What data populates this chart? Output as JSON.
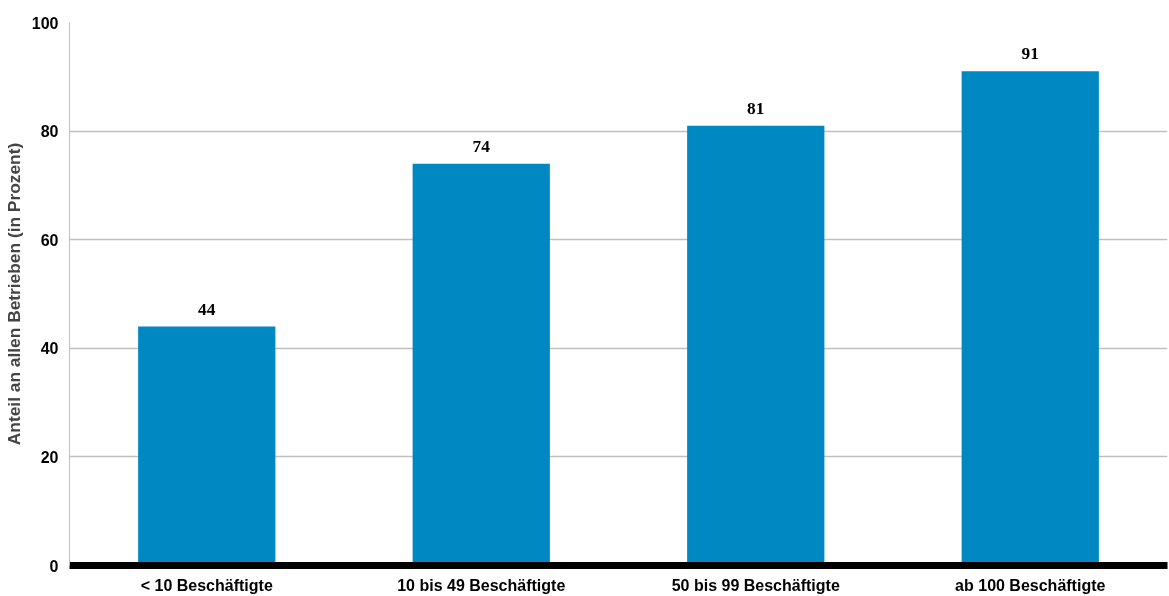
{
  "chart_data": {
    "type": "bar",
    "ylabel": "Anteil an allen Betrieben (in Prozent)",
    "categories": [
      "< 10 Beschäftigte",
      "10 bis 49 Beschäftigte",
      "50 bis 99 Beschäftigte",
      "ab 100 Beschäftigte"
    ],
    "values": [
      44,
      74,
      81,
      91
    ],
    "color": "#0088c2",
    "data_labels": true,
    "ylim": [
      0,
      100
    ],
    "yticks": [
      0,
      20,
      40,
      60,
      80,
      100
    ],
    "grid": "y"
  }
}
